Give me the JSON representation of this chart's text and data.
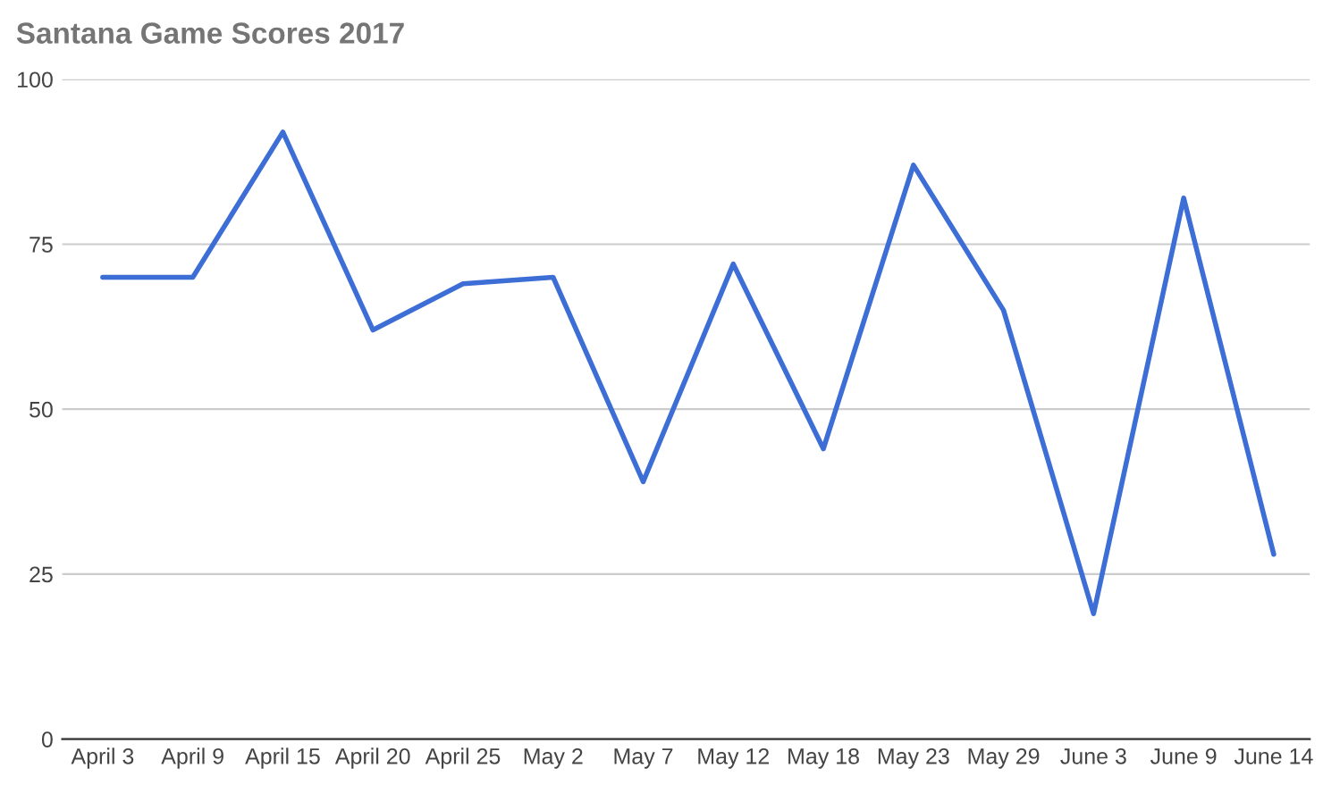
{
  "chart_data": {
    "type": "line",
    "title": "Santana Game Scores 2017",
    "categories": [
      "April 3",
      "April 9",
      "April 15",
      "April 20",
      "April 25",
      "May 2",
      "May 7",
      "May 12",
      "May 18",
      "May 23",
      "May 29",
      "June 3",
      "June 9",
      "June 14"
    ],
    "series": [
      {
        "color": "#3d6ed6",
        "values": [
          70,
          70,
          92,
          62,
          69,
          70,
          39,
          72,
          44,
          87,
          65,
          19,
          82,
          28
        ]
      }
    ],
    "ylim": [
      0,
      100
    ],
    "yticks": [
      0,
      25,
      50,
      75,
      100
    ],
    "grid": "y",
    "marker": "none",
    "line_style": "solid"
  }
}
